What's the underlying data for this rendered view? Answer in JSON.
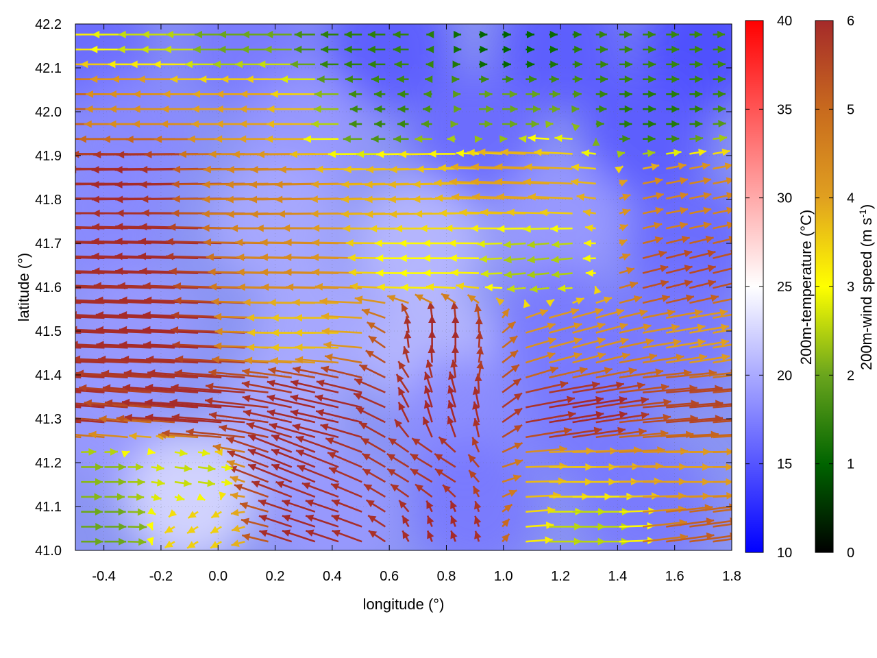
{
  "chart_data": {
    "type": "heatmap",
    "subtype": "vector-field-over-scalar-field",
    "xlabel": "longitude (°)",
    "ylabel": "latitude (°)",
    "xlim": [
      -0.5,
      1.8
    ],
    "ylim": [
      41.0,
      42.2
    ],
    "x_ticks": [
      "-0.4",
      "-0.2",
      "0.0",
      "0.2",
      "0.4",
      "0.6",
      "0.8",
      "1.0",
      "1.2",
      "1.4",
      "1.6",
      "1.8"
    ],
    "y_ticks": [
      "41.0",
      "41.1",
      "41.2",
      "41.3",
      "41.4",
      "41.5",
      "41.6",
      "41.7",
      "41.8",
      "41.9",
      "42.0",
      "42.1",
      "42.2"
    ],
    "grid": true,
    "temperature_colorbar": {
      "label": "200m-temperature (°C)",
      "range": [
        10,
        40
      ],
      "ticks": [
        "10",
        "15",
        "20",
        "25",
        "30",
        "35",
        "40"
      ],
      "colors": [
        "#0000ff",
        "#ffffff",
        "#ff0000"
      ]
    },
    "wind_colorbar": {
      "label_prefix": "200m-wind speed (m s",
      "label_superscript": "-1",
      "label_suffix": ")",
      "range": [
        0,
        6
      ],
      "ticks": [
        "0",
        "1",
        "2",
        "3",
        "4",
        "5",
        "6"
      ],
      "colors": [
        "#000000",
        "#006400",
        "#6aa51d",
        "#ffff00",
        "#e0a020",
        "#c86a1e",
        "#a52a2a"
      ]
    },
    "temperature_field": [
      {
        "x": -0.45,
        "y": 42.15,
        "t": 16
      },
      {
        "x": 0.1,
        "y": 42.15,
        "t": 17
      },
      {
        "x": 0.6,
        "y": 42.15,
        "t": 15
      },
      {
        "x": 1.2,
        "y": 42.15,
        "t": 15
      },
      {
        "x": 1.7,
        "y": 42.15,
        "t": 14
      },
      {
        "x": -0.3,
        "y": 41.95,
        "t": 18
      },
      {
        "x": 0.3,
        "y": 41.95,
        "t": 19
      },
      {
        "x": 0.9,
        "y": 41.95,
        "t": 16
      },
      {
        "x": 1.5,
        "y": 41.95,
        "t": 15
      },
      {
        "x": -0.4,
        "y": 41.75,
        "t": 18
      },
      {
        "x": 0.2,
        "y": 41.75,
        "t": 20
      },
      {
        "x": 0.7,
        "y": 41.7,
        "t": 21
      },
      {
        "x": 1.2,
        "y": 41.75,
        "t": 19
      },
      {
        "x": 1.65,
        "y": 41.7,
        "t": 16
      },
      {
        "x": -0.3,
        "y": 41.5,
        "t": 19
      },
      {
        "x": 0.35,
        "y": 41.5,
        "t": 20
      },
      {
        "x": 0.75,
        "y": 41.45,
        "t": 21
      },
      {
        "x": 1.2,
        "y": 41.5,
        "t": 17
      },
      {
        "x": 1.6,
        "y": 41.5,
        "t": 17
      },
      {
        "x": -0.4,
        "y": 41.3,
        "t": 19
      },
      {
        "x": 0.2,
        "y": 41.3,
        "t": 20
      },
      {
        "x": 0.85,
        "y": 41.3,
        "t": 18
      },
      {
        "x": 1.3,
        "y": 41.3,
        "t": 17
      },
      {
        "x": -0.1,
        "y": 41.12,
        "t": 23
      },
      {
        "x": 0.4,
        "y": 41.08,
        "t": 19
      },
      {
        "x": 0.9,
        "y": 41.1,
        "t": 17
      },
      {
        "x": 1.5,
        "y": 41.1,
        "t": 17
      }
    ],
    "wind_vectors": [
      {
        "x": -0.45,
        "y": 42.18,
        "u": 1.8,
        "v": 0.0,
        "s": 3.2
      },
      {
        "x": -0.2,
        "y": 42.18,
        "u": 1.5,
        "v": 0.0,
        "s": 2.6
      },
      {
        "x": 0.1,
        "y": 42.18,
        "u": 1.2,
        "v": 0.0,
        "s": 2.0
      },
      {
        "x": 0.5,
        "y": 42.15,
        "u": 0.8,
        "v": 0.0,
        "s": 1.4
      },
      {
        "x": 1.0,
        "y": 42.15,
        "u": -0.4,
        "v": 0.0,
        "s": 1.0
      },
      {
        "x": 1.5,
        "y": 42.1,
        "u": -0.6,
        "v": 0.0,
        "s": 1.5
      },
      {
        "x": -0.45,
        "y": 42.02,
        "u": 3.5,
        "v": 0.0,
        "s": 5.5
      },
      {
        "x": -0.15,
        "y": 42.02,
        "u": 3.0,
        "v": 0.0,
        "s": 4.3
      },
      {
        "x": 0.2,
        "y": 42.0,
        "u": 2.4,
        "v": 0.0,
        "s": 4.0
      },
      {
        "x": 0.6,
        "y": 42.0,
        "u": 0.5,
        "v": 0.0,
        "s": 1.5
      },
      {
        "x": 1.0,
        "y": 42.0,
        "u": -0.7,
        "v": 0.0,
        "s": 2.0
      },
      {
        "x": 1.5,
        "y": 42.0,
        "u": -0.6,
        "v": 0.0,
        "s": 1.3
      },
      {
        "x": -0.45,
        "y": 41.85,
        "u": 4.0,
        "v": 0.0,
        "s": 6.0
      },
      {
        "x": -0.1,
        "y": 41.85,
        "u": 3.8,
        "v": 0.05,
        "s": 6.0
      },
      {
        "x": 0.3,
        "y": 41.82,
        "u": 3.0,
        "v": 0.05,
        "s": 4.5
      },
      {
        "x": 0.7,
        "y": 41.82,
        "u": 2.0,
        "v": 0.05,
        "s": 3.8
      },
      {
        "x": 1.1,
        "y": 41.85,
        "u": 2.5,
        "v": -0.1,
        "s": 4.0
      },
      {
        "x": 1.6,
        "y": 41.8,
        "u": -1.0,
        "v": -0.2,
        "s": 4.5
      },
      {
        "x": -0.45,
        "y": 41.68,
        "u": 4.2,
        "v": -0.1,
        "s": 6.0
      },
      {
        "x": -0.05,
        "y": 41.68,
        "u": 3.8,
        "v": -0.1,
        "s": 6.0
      },
      {
        "x": 0.35,
        "y": 41.65,
        "u": 2.5,
        "v": -0.05,
        "s": 4.4
      },
      {
        "x": 0.75,
        "y": 41.65,
        "u": 1.5,
        "v": 0.0,
        "s": 3.0
      },
      {
        "x": 1.15,
        "y": 41.65,
        "u": 1.0,
        "v": 0.1,
        "s": 2.4
      },
      {
        "x": 1.6,
        "y": 41.62,
        "u": -1.2,
        "v": -0.3,
        "s": 5.5
      },
      {
        "x": -0.45,
        "y": 41.5,
        "u": 4.2,
        "v": -0.15,
        "s": 6.0
      },
      {
        "x": -0.05,
        "y": 41.5,
        "u": 3.6,
        "v": -0.15,
        "s": 6.0
      },
      {
        "x": 0.35,
        "y": 41.5,
        "u": 2.0,
        "v": 0.0,
        "s": 3.6
      },
      {
        "x": 0.78,
        "y": 41.48,
        "u": 0.0,
        "v": -0.8,
        "s": 6.0
      },
      {
        "x": 1.2,
        "y": 41.48,
        "u": -1.5,
        "v": -0.4,
        "s": 4.2
      },
      {
        "x": 1.65,
        "y": 41.48,
        "u": -1.8,
        "v": -0.3,
        "s": 4.0
      },
      {
        "x": -0.45,
        "y": 41.32,
        "u": 4.0,
        "v": -0.3,
        "s": 6.0
      },
      {
        "x": 0.0,
        "y": 41.32,
        "u": 3.5,
        "v": -0.25,
        "s": 6.0
      },
      {
        "x": 0.4,
        "y": 41.32,
        "u": 2.2,
        "v": -0.5,
        "s": 6.0
      },
      {
        "x": 0.8,
        "y": 41.3,
        "u": 0.3,
        "v": -1.0,
        "s": 6.0
      },
      {
        "x": 1.2,
        "y": 41.3,
        "u": -2.5,
        "v": -0.4,
        "s": 6.0
      },
      {
        "x": 1.6,
        "y": 41.32,
        "u": -2.6,
        "v": -0.2,
        "s": 5.6
      },
      {
        "x": -0.45,
        "y": 41.18,
        "u": -1.0,
        "v": 0.0,
        "s": 2.2
      },
      {
        "x": -0.1,
        "y": 41.18,
        "u": -0.8,
        "v": 0.1,
        "s": 2.6
      },
      {
        "x": 0.3,
        "y": 41.18,
        "u": 2.0,
        "v": -0.8,
        "s": 6.0
      },
      {
        "x": 0.75,
        "y": 41.18,
        "u": 1.0,
        "v": -0.6,
        "s": 5.8
      },
      {
        "x": 1.2,
        "y": 41.18,
        "u": -2.0,
        "v": 0.0,
        "s": 3.6
      },
      {
        "x": 1.6,
        "y": 41.18,
        "u": -2.0,
        "v": 0.0,
        "s": 4.0
      },
      {
        "x": -0.45,
        "y": 41.05,
        "u": -1.0,
        "v": 0.0,
        "s": 2.0
      },
      {
        "x": -0.05,
        "y": 41.05,
        "u": 0.5,
        "v": 0.3,
        "s": 3.5
      },
      {
        "x": 0.35,
        "y": 41.05,
        "u": 1.5,
        "v": -0.5,
        "s": 6.0
      },
      {
        "x": 0.8,
        "y": 41.05,
        "u": 0.2,
        "v": -0.5,
        "s": 6.0
      },
      {
        "x": 1.25,
        "y": 41.05,
        "u": -1.5,
        "v": 0.0,
        "s": 2.5
      },
      {
        "x": 1.65,
        "y": 41.03,
        "u": -2.2,
        "v": -0.3,
        "s": 5.2
      }
    ]
  }
}
